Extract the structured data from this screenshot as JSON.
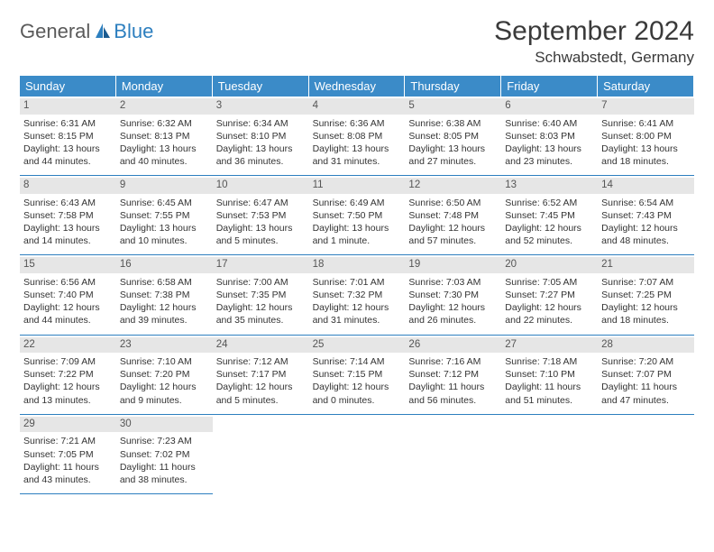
{
  "logo": {
    "general": "General",
    "blue": "Blue"
  },
  "header": {
    "month_title": "September 2024",
    "location": "Schwabstedt, Germany"
  },
  "style": {
    "header_bg": "#3b8bc8",
    "header_text": "#ffffff",
    "daynum_bg": "#e6e6e6",
    "border_color": "#2d7fbf",
    "body_text": "#333333",
    "title_color": "#3a3a3a",
    "logo_gray": "#5a5a5a",
    "logo_blue": "#2d7fbf"
  },
  "day_names": [
    "Sunday",
    "Monday",
    "Tuesday",
    "Wednesday",
    "Thursday",
    "Friday",
    "Saturday"
  ],
  "weeks": [
    [
      {
        "day": "1",
        "sunrise": "Sunrise: 6:31 AM",
        "sunset": "Sunset: 8:15 PM",
        "daylight1": "Daylight: 13 hours",
        "daylight2": "and 44 minutes."
      },
      {
        "day": "2",
        "sunrise": "Sunrise: 6:32 AM",
        "sunset": "Sunset: 8:13 PM",
        "daylight1": "Daylight: 13 hours",
        "daylight2": "and 40 minutes."
      },
      {
        "day": "3",
        "sunrise": "Sunrise: 6:34 AM",
        "sunset": "Sunset: 8:10 PM",
        "daylight1": "Daylight: 13 hours",
        "daylight2": "and 36 minutes."
      },
      {
        "day": "4",
        "sunrise": "Sunrise: 6:36 AM",
        "sunset": "Sunset: 8:08 PM",
        "daylight1": "Daylight: 13 hours",
        "daylight2": "and 31 minutes."
      },
      {
        "day": "5",
        "sunrise": "Sunrise: 6:38 AM",
        "sunset": "Sunset: 8:05 PM",
        "daylight1": "Daylight: 13 hours",
        "daylight2": "and 27 minutes."
      },
      {
        "day": "6",
        "sunrise": "Sunrise: 6:40 AM",
        "sunset": "Sunset: 8:03 PM",
        "daylight1": "Daylight: 13 hours",
        "daylight2": "and 23 minutes."
      },
      {
        "day": "7",
        "sunrise": "Sunrise: 6:41 AM",
        "sunset": "Sunset: 8:00 PM",
        "daylight1": "Daylight: 13 hours",
        "daylight2": "and 18 minutes."
      }
    ],
    [
      {
        "day": "8",
        "sunrise": "Sunrise: 6:43 AM",
        "sunset": "Sunset: 7:58 PM",
        "daylight1": "Daylight: 13 hours",
        "daylight2": "and 14 minutes."
      },
      {
        "day": "9",
        "sunrise": "Sunrise: 6:45 AM",
        "sunset": "Sunset: 7:55 PM",
        "daylight1": "Daylight: 13 hours",
        "daylight2": "and 10 minutes."
      },
      {
        "day": "10",
        "sunrise": "Sunrise: 6:47 AM",
        "sunset": "Sunset: 7:53 PM",
        "daylight1": "Daylight: 13 hours",
        "daylight2": "and 5 minutes."
      },
      {
        "day": "11",
        "sunrise": "Sunrise: 6:49 AM",
        "sunset": "Sunset: 7:50 PM",
        "daylight1": "Daylight: 13 hours",
        "daylight2": "and 1 minute."
      },
      {
        "day": "12",
        "sunrise": "Sunrise: 6:50 AM",
        "sunset": "Sunset: 7:48 PM",
        "daylight1": "Daylight: 12 hours",
        "daylight2": "and 57 minutes."
      },
      {
        "day": "13",
        "sunrise": "Sunrise: 6:52 AM",
        "sunset": "Sunset: 7:45 PM",
        "daylight1": "Daylight: 12 hours",
        "daylight2": "and 52 minutes."
      },
      {
        "day": "14",
        "sunrise": "Sunrise: 6:54 AM",
        "sunset": "Sunset: 7:43 PM",
        "daylight1": "Daylight: 12 hours",
        "daylight2": "and 48 minutes."
      }
    ],
    [
      {
        "day": "15",
        "sunrise": "Sunrise: 6:56 AM",
        "sunset": "Sunset: 7:40 PM",
        "daylight1": "Daylight: 12 hours",
        "daylight2": "and 44 minutes."
      },
      {
        "day": "16",
        "sunrise": "Sunrise: 6:58 AM",
        "sunset": "Sunset: 7:38 PM",
        "daylight1": "Daylight: 12 hours",
        "daylight2": "and 39 minutes."
      },
      {
        "day": "17",
        "sunrise": "Sunrise: 7:00 AM",
        "sunset": "Sunset: 7:35 PM",
        "daylight1": "Daylight: 12 hours",
        "daylight2": "and 35 minutes."
      },
      {
        "day": "18",
        "sunrise": "Sunrise: 7:01 AM",
        "sunset": "Sunset: 7:32 PM",
        "daylight1": "Daylight: 12 hours",
        "daylight2": "and 31 minutes."
      },
      {
        "day": "19",
        "sunrise": "Sunrise: 7:03 AM",
        "sunset": "Sunset: 7:30 PM",
        "daylight1": "Daylight: 12 hours",
        "daylight2": "and 26 minutes."
      },
      {
        "day": "20",
        "sunrise": "Sunrise: 7:05 AM",
        "sunset": "Sunset: 7:27 PM",
        "daylight1": "Daylight: 12 hours",
        "daylight2": "and 22 minutes."
      },
      {
        "day": "21",
        "sunrise": "Sunrise: 7:07 AM",
        "sunset": "Sunset: 7:25 PM",
        "daylight1": "Daylight: 12 hours",
        "daylight2": "and 18 minutes."
      }
    ],
    [
      {
        "day": "22",
        "sunrise": "Sunrise: 7:09 AM",
        "sunset": "Sunset: 7:22 PM",
        "daylight1": "Daylight: 12 hours",
        "daylight2": "and 13 minutes."
      },
      {
        "day": "23",
        "sunrise": "Sunrise: 7:10 AM",
        "sunset": "Sunset: 7:20 PM",
        "daylight1": "Daylight: 12 hours",
        "daylight2": "and 9 minutes."
      },
      {
        "day": "24",
        "sunrise": "Sunrise: 7:12 AM",
        "sunset": "Sunset: 7:17 PM",
        "daylight1": "Daylight: 12 hours",
        "daylight2": "and 5 minutes."
      },
      {
        "day": "25",
        "sunrise": "Sunrise: 7:14 AM",
        "sunset": "Sunset: 7:15 PM",
        "daylight1": "Daylight: 12 hours",
        "daylight2": "and 0 minutes."
      },
      {
        "day": "26",
        "sunrise": "Sunrise: 7:16 AM",
        "sunset": "Sunset: 7:12 PM",
        "daylight1": "Daylight: 11 hours",
        "daylight2": "and 56 minutes."
      },
      {
        "day": "27",
        "sunrise": "Sunrise: 7:18 AM",
        "sunset": "Sunset: 7:10 PM",
        "daylight1": "Daylight: 11 hours",
        "daylight2": "and 51 minutes."
      },
      {
        "day": "28",
        "sunrise": "Sunrise: 7:20 AM",
        "sunset": "Sunset: 7:07 PM",
        "daylight1": "Daylight: 11 hours",
        "daylight2": "and 47 minutes."
      }
    ],
    [
      {
        "day": "29",
        "sunrise": "Sunrise: 7:21 AM",
        "sunset": "Sunset: 7:05 PM",
        "daylight1": "Daylight: 11 hours",
        "daylight2": "and 43 minutes."
      },
      {
        "day": "30",
        "sunrise": "Sunrise: 7:23 AM",
        "sunset": "Sunset: 7:02 PM",
        "daylight1": "Daylight: 11 hours",
        "daylight2": "and 38 minutes."
      },
      null,
      null,
      null,
      null,
      null
    ]
  ]
}
